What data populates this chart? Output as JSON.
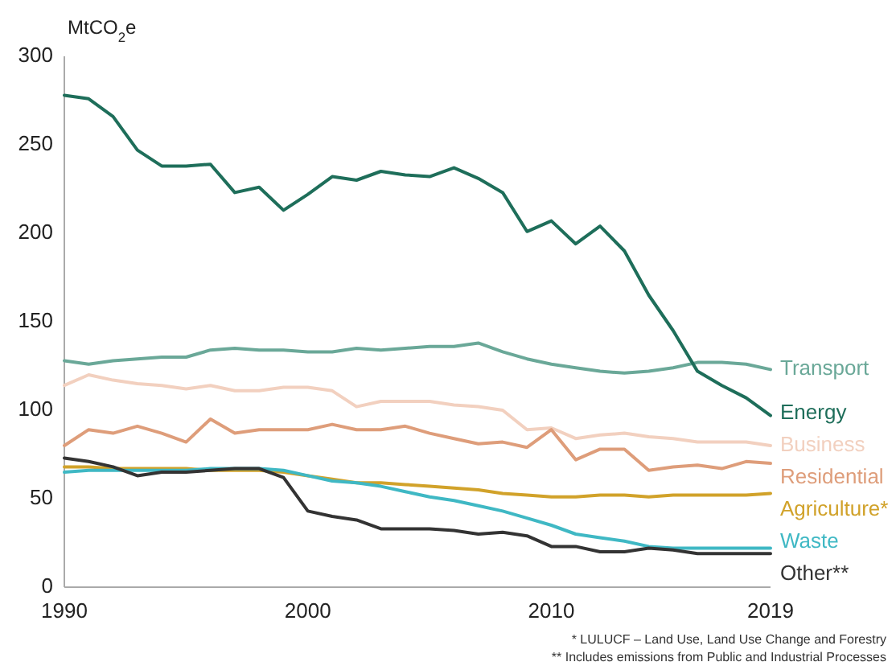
{
  "chart_data": {
    "type": "line",
    "ylabel": "MtCO$_{2}$e",
    "x": [
      1990,
      1991,
      1992,
      1993,
      1994,
      1995,
      1996,
      1997,
      1998,
      1999,
      2000,
      2001,
      2002,
      2003,
      2004,
      2005,
      2006,
      2007,
      2008,
      2009,
      2010,
      2011,
      2012,
      2013,
      2014,
      2015,
      2016,
      2017,
      2018,
      2019
    ],
    "xlim": [
      1990,
      2019
    ],
    "xticks": [
      1990,
      2000,
      2010,
      2019
    ],
    "ylim": [
      0,
      300
    ],
    "yticks": [
      0,
      50,
      100,
      150,
      200,
      250,
      300
    ],
    "grid": false,
    "legend": false,
    "marker": "none",
    "line_style": "solid",
    "series": [
      {
        "name": "Transport",
        "color": "#6aa898",
        "values": [
          128,
          126,
          128,
          129,
          130,
          130,
          134,
          135,
          134,
          134,
          133,
          133,
          135,
          134,
          135,
          136,
          136,
          138,
          133,
          129,
          126,
          124,
          122,
          121,
          122,
          124,
          127,
          127,
          126,
          123
        ]
      },
      {
        "name": "Energy",
        "color": "#1e6e5a",
        "values": [
          278,
          276,
          266,
          247,
          238,
          238,
          239,
          223,
          226,
          213,
          222,
          232,
          230,
          235,
          233,
          232,
          237,
          231,
          223,
          201,
          207,
          194,
          204,
          190,
          165,
          145,
          122,
          114,
          107,
          97
        ]
      },
      {
        "name": "Business",
        "color": "#f2d0bf",
        "values": [
          114,
          120,
          117,
          115,
          114,
          112,
          114,
          111,
          111,
          113,
          113,
          111,
          102,
          105,
          105,
          105,
          103,
          102,
          100,
          89,
          90,
          84,
          86,
          87,
          85,
          84,
          82,
          82,
          82,
          80
        ]
      },
      {
        "name": "Residential",
        "color": "#de9d7a",
        "values": [
          80,
          89,
          87,
          91,
          87,
          82,
          95,
          87,
          89,
          89,
          89,
          92,
          89,
          89,
          91,
          87,
          84,
          81,
          82,
          79,
          89,
          72,
          78,
          78,
          66,
          68,
          69,
          67,
          71,
          70
        ]
      },
      {
        "name": "Agriculture*",
        "color": "#d1a22a",
        "values": [
          68,
          68,
          67,
          67,
          67,
          67,
          66,
          66,
          66,
          65,
          63,
          61,
          59,
          59,
          58,
          57,
          56,
          55,
          53,
          52,
          51,
          51,
          52,
          52,
          51,
          52,
          52,
          52,
          52,
          53
        ]
      },
      {
        "name": "Waste",
        "color": "#3fb8c4",
        "values": [
          65,
          66,
          66,
          66,
          66,
          66,
          67,
          67,
          67,
          66,
          63,
          60,
          59,
          57,
          54,
          51,
          49,
          46,
          43,
          39,
          35,
          30,
          28,
          26,
          23,
          22,
          22,
          22,
          22,
          22
        ]
      },
      {
        "name": "Other**",
        "color": "#333333",
        "values": [
          73,
          71,
          68,
          63,
          65,
          65,
          66,
          67,
          67,
          62,
          43,
          40,
          38,
          33,
          33,
          33,
          32,
          30,
          31,
          29,
          23,
          23,
          20,
          20,
          22,
          21,
          19,
          19,
          19,
          19
        ]
      }
    ],
    "annotations": [
      "* LULUCF  – Land Use, Land Use Change and Forestry",
      "** Includes emissions from Public and Industrial Processes"
    ]
  }
}
